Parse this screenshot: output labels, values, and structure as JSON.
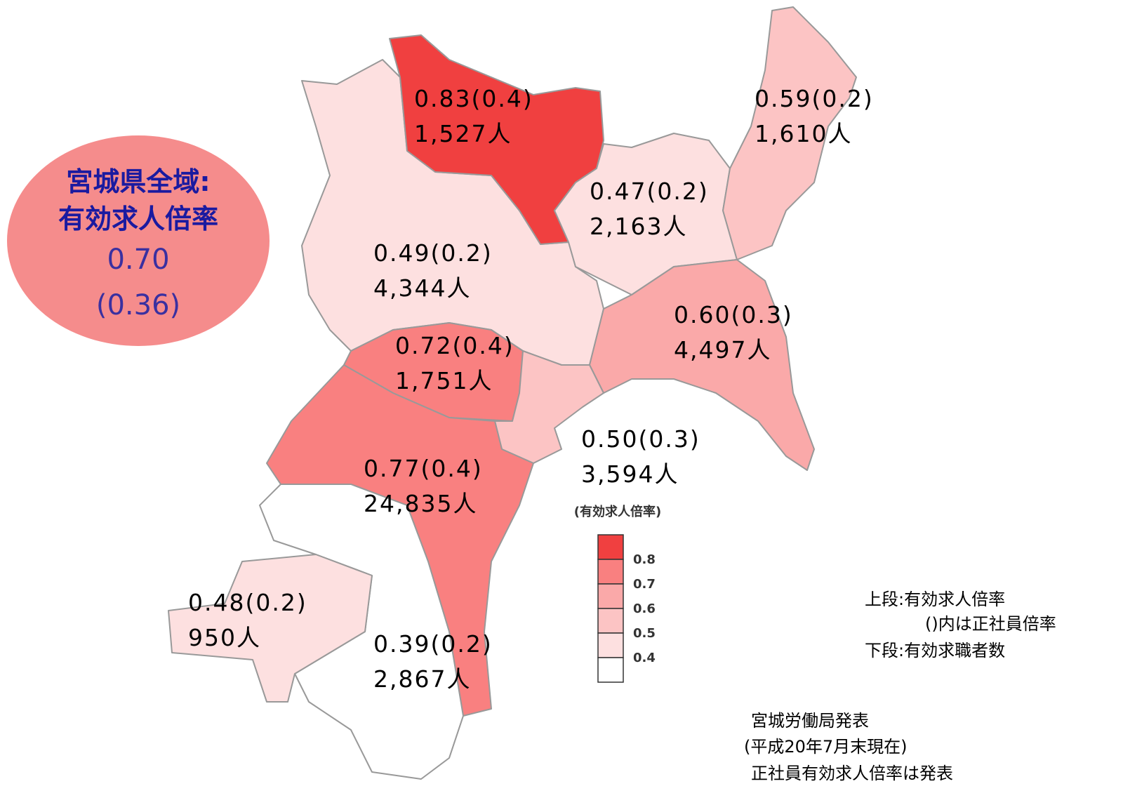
{
  "overall": {
    "lines": [
      "宮城県全域:",
      "有効求人倍率"
    ],
    "ratio": "0.70",
    "regular": "(0.36)"
  },
  "regions": [
    {
      "line1": "0.49(0.2)",
      "line2": "4,344人",
      "color": "#fde0e0"
    },
    {
      "line1": "0.83(0.4)",
      "line2": "1,527人",
      "color": "#f04040"
    },
    {
      "line1": "0.47(0.2)",
      "line2": "2,163人",
      "color": "#fde0e0"
    },
    {
      "line1": "0.59(0.2)",
      "line2": "1,610人",
      "color": "#fcc4c4"
    },
    {
      "line1": "0.60(0.3)",
      "line2": "4,497人",
      "color": "#faa9a9"
    },
    {
      "line1": "0.72(0.4)",
      "line2": "1,751人",
      "color": "#f98080"
    },
    {
      "line1": "0.50(0.3)",
      "line2": "3,594人",
      "color": "#fcc4c4"
    },
    {
      "line1": "0.77(0.4)",
      "line2": "24,835人",
      "color": "#f98080"
    },
    {
      "line1": "0.39(0.2)",
      "line2": "2,867人",
      "color": "#ffffff"
    },
    {
      "line1": "0.48(0.2)",
      "line2": "950人",
      "color": "#fde0e0"
    }
  ],
  "legend": {
    "title": "(有効求人倍率)",
    "colors": [
      "#f04040",
      "#f98080",
      "#faa9a9",
      "#fcc4c4",
      "#fde0e0",
      "#ffffff"
    ],
    "labels": [
      "0.8",
      "0.7",
      "0.6",
      "0.5",
      "0.4"
    ]
  },
  "notes": [
    "上段:有効求人倍率",
    "()内は正社員倍率",
    "下段:有効求職者数"
  ],
  "source": [
    "宮城労働局発表",
    "(平成20年7月末現在)",
    "正社員有効求人倍率は発表"
  ]
}
